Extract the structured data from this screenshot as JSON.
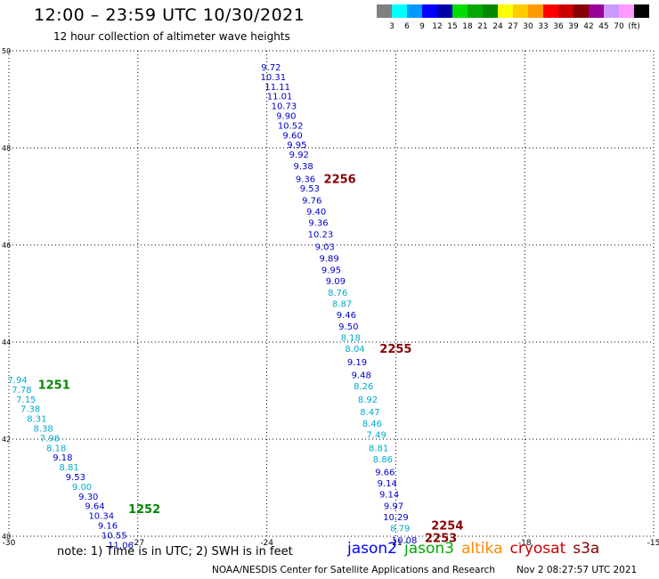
{
  "header": {
    "title": "12:00 – 23:59 UTC 10/30/2021",
    "subtitle": "12 hour collection of altimeter wave heights"
  },
  "colorbar": {
    "colors": [
      "#808080",
      "#00ffff",
      "#0099ff",
      "#0000ff",
      "#0000aa",
      "#00dd00",
      "#00aa00",
      "#008800",
      "#ffff00",
      "#ffcc00",
      "#ff9900",
      "#ff0000",
      "#cc0000",
      "#880000",
      "#990099",
      "#cc99ff",
      "#ff99ff",
      "#000000"
    ],
    "labels": [
      "3",
      "6",
      "9",
      "12",
      "15",
      "18",
      "21",
      "24",
      "27",
      "30",
      "33",
      "36",
      "39",
      "42",
      "45",
      "70",
      "(ft)"
    ]
  },
  "chart_data": {
    "type": "scatter",
    "title": "12:00 – 23:59 UTC 10/30/2021",
    "xlim": [
      -30,
      -15
    ],
    "ylim": [
      40,
      50
    ],
    "grid": true,
    "x_ticks": [
      "-30",
      "-27",
      "-24",
      "-21",
      "-18",
      "-15"
    ],
    "y_ticks": [
      "40",
      "42",
      "44",
      "46",
      "48",
      "50"
    ],
    "tracks": [
      {
        "points": [
          {
            "lon": -23.9,
            "lat": 49.67,
            "swh": "9.72",
            "color": "#0000cc"
          },
          {
            "lon": -23.85,
            "lat": 49.47,
            "swh": "10.31",
            "color": "#0000cc"
          },
          {
            "lon": -23.75,
            "lat": 49.27,
            "swh": "11.11",
            "color": "#0000cc"
          },
          {
            "lon": -23.7,
            "lat": 49.07,
            "swh": "11.01",
            "color": "#0000cc"
          },
          {
            "lon": -23.6,
            "lat": 48.87,
            "swh": "10.73",
            "color": "#0000cc"
          },
          {
            "lon": -23.55,
            "lat": 48.67,
            "swh": "9.90",
            "color": "#0000cc"
          },
          {
            "lon": -23.45,
            "lat": 48.47,
            "swh": "10.52",
            "color": "#0000cc"
          },
          {
            "lon": -23.4,
            "lat": 48.27,
            "swh": "9.60",
            "color": "#0000cc"
          },
          {
            "lon": -23.3,
            "lat": 48.07,
            "swh": "9.95",
            "color": "#0000cc"
          },
          {
            "lon": -23.25,
            "lat": 47.87,
            "swh": "9.92",
            "color": "#0000cc"
          },
          {
            "lon": -23.15,
            "lat": 47.63,
            "swh": "9.38",
            "color": "#0000cc"
          },
          {
            "lon": -23.1,
            "lat": 47.37,
            "swh": "9.36",
            "color": "#0000cc"
          },
          {
            "lon": -23.0,
            "lat": 47.17,
            "swh": "9.53",
            "color": "#0000cc"
          },
          {
            "lon": -22.95,
            "lat": 46.93,
            "swh": "9.76",
            "color": "#0000cc"
          },
          {
            "lon": -22.85,
            "lat": 46.7,
            "swh": "9.40",
            "color": "#0000cc"
          },
          {
            "lon": -22.8,
            "lat": 46.47,
            "swh": "9.36",
            "color": "#0000cc"
          },
          {
            "lon": -22.75,
            "lat": 46.23,
            "swh": "10.23",
            "color": "#0000cc"
          },
          {
            "lon": -22.65,
            "lat": 45.97,
            "swh": "9.03",
            "color": "#0000cc"
          },
          {
            "lon": -22.55,
            "lat": 45.73,
            "swh": "9.89",
            "color": "#0000cc"
          },
          {
            "lon": -22.5,
            "lat": 45.5,
            "swh": "9.95",
            "color": "#0000cc"
          },
          {
            "lon": -22.4,
            "lat": 45.27,
            "swh": "9.09",
            "color": "#0000cc"
          },
          {
            "lon": -22.35,
            "lat": 45.03,
            "swh": "8.76",
            "color": "#00aacc"
          },
          {
            "lon": -22.25,
            "lat": 44.8,
            "swh": "8.87",
            "color": "#00aacc"
          },
          {
            "lon": -22.15,
            "lat": 44.57,
            "swh": "9.46",
            "color": "#0000cc"
          },
          {
            "lon": -22.1,
            "lat": 44.33,
            "swh": "9.50",
            "color": "#0000cc"
          },
          {
            "lon": -22.05,
            "lat": 44.1,
            "swh": "8.18",
            "color": "#00aacc"
          },
          {
            "lon": -21.95,
            "lat": 43.87,
            "swh": "8.04",
            "color": "#00aacc"
          },
          {
            "lon": -21.9,
            "lat": 43.6,
            "swh": "9.19",
            "color": "#0000cc"
          },
          {
            "lon": -21.8,
            "lat": 43.33,
            "swh": "9.48",
            "color": "#0000cc"
          },
          {
            "lon": -21.75,
            "lat": 43.1,
            "swh": "8.26",
            "color": "#00aacc"
          },
          {
            "lon": -21.65,
            "lat": 42.83,
            "swh": "8.92",
            "color": "#00aacc"
          },
          {
            "lon": -21.6,
            "lat": 42.57,
            "swh": "8.47",
            "color": "#00aacc"
          },
          {
            "lon": -21.55,
            "lat": 42.33,
            "swh": "8.46",
            "color": "#00aacc"
          },
          {
            "lon": -21.45,
            "lat": 42.1,
            "swh": "7.49",
            "color": "#00aacc"
          },
          {
            "lon": -21.4,
            "lat": 41.83,
            "swh": "8.81",
            "color": "#00aacc"
          },
          {
            "lon": -21.3,
            "lat": 41.6,
            "swh": "8.86",
            "color": "#00aacc"
          },
          {
            "lon": -21.25,
            "lat": 41.33,
            "swh": "9.66",
            "color": "#0000cc"
          },
          {
            "lon": -21.2,
            "lat": 41.1,
            "swh": "9.14",
            "color": "#0000cc"
          },
          {
            "lon": -21.15,
            "lat": 40.87,
            "swh": "9.14",
            "color": "#0000cc"
          },
          {
            "lon": -21.05,
            "lat": 40.63,
            "swh": "9.97",
            "color": "#0000cc"
          },
          {
            "lon": -21.0,
            "lat": 40.4,
            "swh": "10.29",
            "color": "#0000cc"
          },
          {
            "lon": -20.9,
            "lat": 40.17,
            "swh": "8.79",
            "color": "#00aacc"
          },
          {
            "lon": -20.8,
            "lat": 39.93,
            "swh": "10.08",
            "color": "#0000cc"
          }
        ],
        "time_labels": [
          {
            "lon": -22.3,
            "lat": 47.37,
            "text": "2256",
            "color": "#880000"
          },
          {
            "lon": -21.0,
            "lat": 43.87,
            "text": "2255",
            "color": "#880000"
          },
          {
            "lon": -19.8,
            "lat": 40.23,
            "text": "2254",
            "color": "#880000"
          },
          {
            "lon": -19.95,
            "lat": 39.97,
            "text": "2253",
            "color": "#880000"
          }
        ]
      },
      {
        "points": [
          {
            "lon": -29.8,
            "lat": 43.23,
            "swh": "7.94",
            "color": "#00aacc"
          },
          {
            "lon": -29.7,
            "lat": 43.03,
            "swh": "7.78",
            "color": "#00aacc"
          },
          {
            "lon": -29.6,
            "lat": 42.83,
            "swh": "7.15",
            "color": "#00aacc"
          },
          {
            "lon": -29.5,
            "lat": 42.63,
            "swh": "7.38",
            "color": "#00aacc"
          },
          {
            "lon": -29.35,
            "lat": 42.43,
            "swh": "8.31",
            "color": "#00aacc"
          },
          {
            "lon": -29.2,
            "lat": 42.23,
            "swh": "8.38",
            "color": "#00aacc"
          },
          {
            "lon": -29.05,
            "lat": 42.03,
            "swh": "7.98",
            "color": "#00aacc"
          },
          {
            "lon": -28.9,
            "lat": 41.83,
            "swh": "8.18",
            "color": "#00aacc"
          },
          {
            "lon": -28.75,
            "lat": 41.63,
            "swh": "9.18",
            "color": "#0000cc"
          },
          {
            "lon": -28.6,
            "lat": 41.43,
            "swh": "8.81",
            "color": "#00aacc"
          },
          {
            "lon": -28.45,
            "lat": 41.23,
            "swh": "9.53",
            "color": "#0000cc"
          },
          {
            "lon": -28.3,
            "lat": 41.03,
            "swh": "9.00",
            "color": "#00aacc"
          },
          {
            "lon": -28.15,
            "lat": 40.83,
            "swh": "9.30",
            "color": "#0000cc"
          },
          {
            "lon": -28.0,
            "lat": 40.63,
            "swh": "9.64",
            "color": "#0000cc"
          },
          {
            "lon": -27.85,
            "lat": 40.43,
            "swh": "10.34",
            "color": "#0000cc"
          },
          {
            "lon": -27.7,
            "lat": 40.23,
            "swh": "9.16",
            "color": "#0000cc"
          },
          {
            "lon": -27.55,
            "lat": 40.03,
            "swh": "10.55",
            "color": "#0000cc"
          },
          {
            "lon": -27.4,
            "lat": 39.83,
            "swh": "11.06",
            "color": "#0000cc"
          }
        ],
        "time_labels": [
          {
            "lon": -28.95,
            "lat": 43.13,
            "text": "1251",
            "color": "#008800"
          },
          {
            "lon": -26.85,
            "lat": 40.57,
            "text": "1252",
            "color": "#008800"
          }
        ]
      }
    ]
  },
  "footer": {
    "note": "note:  1) Time is in UTC;  2) SWH is in feet",
    "legend": [
      {
        "name": "jason2",
        "color": "#0000ff"
      },
      {
        "name": "jason3",
        "color": "#00aa00"
      },
      {
        "name": "altika",
        "color": "#ff8800"
      },
      {
        "name": "cryosat",
        "color": "#cc0000"
      },
      {
        "name": "s3a",
        "color": "#880000"
      }
    ],
    "credit": "NOAA/NESDIS Center for Satellite Applications and Research",
    "timestamp": "Nov  2 08:27:57 UTC 2021"
  }
}
